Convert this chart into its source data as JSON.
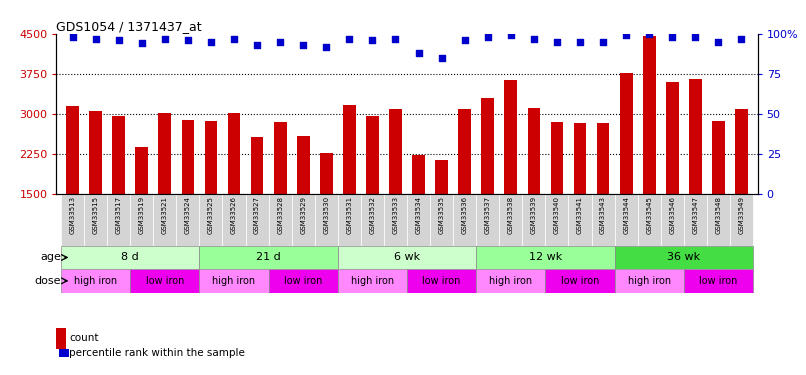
{
  "title": "GDS1054 / 1371437_at",
  "samples": [
    "GSM33513",
    "GSM33515",
    "GSM33517",
    "GSM33519",
    "GSM33521",
    "GSM33524",
    "GSM33525",
    "GSM33526",
    "GSM33527",
    "GSM33528",
    "GSM33529",
    "GSM33530",
    "GSM33531",
    "GSM33532",
    "GSM33533",
    "GSM33534",
    "GSM33535",
    "GSM33536",
    "GSM33537",
    "GSM33538",
    "GSM33539",
    "GSM33540",
    "GSM33541",
    "GSM33543",
    "GSM33544",
    "GSM33545",
    "GSM33546",
    "GSM33547",
    "GSM33548",
    "GSM33549"
  ],
  "counts": [
    3150,
    3050,
    2950,
    2370,
    3020,
    2880,
    2860,
    3020,
    2560,
    2840,
    2580,
    2270,
    3160,
    2960,
    3080,
    2220,
    2130,
    3090,
    3290,
    3640,
    3100,
    2850,
    2820,
    2830,
    3760,
    4460,
    3590,
    3650,
    2870,
    3090
  ],
  "percentile_ranks": [
    98,
    97,
    96,
    94,
    97,
    96,
    95,
    97,
    93,
    95,
    93,
    92,
    97,
    96,
    97,
    88,
    85,
    96,
    98,
    99,
    97,
    95,
    95,
    95,
    99,
    100,
    98,
    98,
    95,
    97
  ],
  "ymin": 1500,
  "ymax": 4500,
  "yticks": [
    1500,
    2250,
    3000,
    3750,
    4500
  ],
  "ytick_labels": [
    "1500",
    "2250",
    "3000",
    "3750",
    "4500"
  ],
  "right_yticks": [
    0,
    25,
    50,
    75,
    100
  ],
  "right_ytick_labels": [
    "0",
    "25",
    "50",
    "75",
    "100%"
  ],
  "bar_color": "#cc0000",
  "dot_color": "#0000cc",
  "age_groups": [
    {
      "label": "8 d",
      "start": 0,
      "end": 6,
      "color": "#ccffcc"
    },
    {
      "label": "21 d",
      "start": 6,
      "end": 12,
      "color": "#99ff99"
    },
    {
      "label": "6 wk",
      "start": 12,
      "end": 18,
      "color": "#ccffcc"
    },
    {
      "label": "12 wk",
      "start": 18,
      "end": 24,
      "color": "#99ff99"
    },
    {
      "label": "36 wk",
      "start": 24,
      "end": 30,
      "color": "#44dd44"
    }
  ],
  "dose_groups": [
    {
      "label": "high iron",
      "start": 0,
      "end": 3,
      "color": "#ff88ff"
    },
    {
      "label": "low iron",
      "start": 3,
      "end": 6,
      "color": "#ee00ee"
    },
    {
      "label": "high iron",
      "start": 6,
      "end": 9,
      "color": "#ff88ff"
    },
    {
      "label": "low iron",
      "start": 9,
      "end": 12,
      "color": "#ee00ee"
    },
    {
      "label": "high iron",
      "start": 12,
      "end": 15,
      "color": "#ff88ff"
    },
    {
      "label": "low iron",
      "start": 15,
      "end": 18,
      "color": "#ee00ee"
    },
    {
      "label": "high iron",
      "start": 18,
      "end": 21,
      "color": "#ff88ff"
    },
    {
      "label": "low iron",
      "start": 21,
      "end": 24,
      "color": "#ee00ee"
    },
    {
      "label": "high iron",
      "start": 24,
      "end": 27,
      "color": "#ff88ff"
    },
    {
      "label": "low iron",
      "start": 27,
      "end": 30,
      "color": "#ee00ee"
    }
  ],
  "legend_count_color": "#cc0000",
  "legend_dot_color": "#0000cc",
  "background_color": "#ffffff",
  "tick_label_color_left": "#cc0000",
  "tick_label_color_right": "#0000cc",
  "title_color": "#000000",
  "bar_width": 0.55
}
